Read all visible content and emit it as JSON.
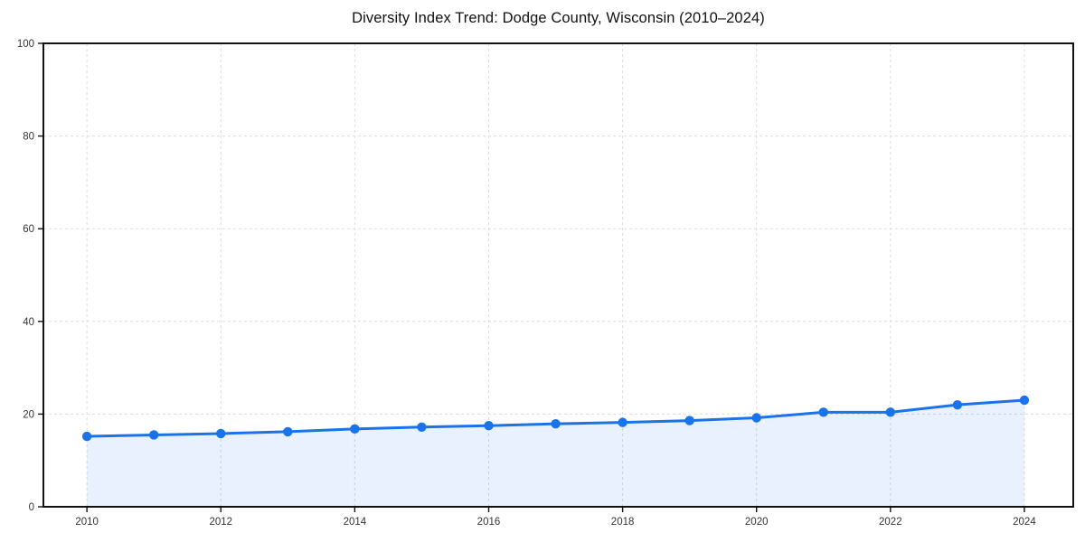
{
  "page": {
    "title": "Diversity Index Trend: Dodge County, Wisconsin (2010–2024)"
  },
  "chart_data": {
    "type": "line",
    "title": "Diversity Index Trend: Dodge County, Wisconsin (2010–2024)",
    "x": [
      2010,
      2011,
      2012,
      2013,
      2014,
      2015,
      2016,
      2017,
      2018,
      2019,
      2020,
      2021,
      2022,
      2023,
      2024
    ],
    "series": [
      {
        "name": "Diversity Index",
        "values": [
          15.2,
          15.5,
          15.8,
          16.2,
          16.8,
          17.2,
          17.5,
          17.9,
          18.2,
          18.6,
          19.2,
          20.4,
          20.4,
          22.0,
          23.0
        ]
      }
    ],
    "xlabel": "",
    "ylabel": "",
    "xlim": [
      2009.35,
      2024.73
    ],
    "ylim": [
      0,
      100
    ],
    "x_ticks": [
      2010,
      2012,
      2014,
      2016,
      2018,
      2020,
      2022,
      2024
    ],
    "y_ticks": [
      0,
      20,
      40,
      60,
      80,
      100
    ],
    "grid": true,
    "grid_style": "dashed",
    "legend": false,
    "line_color": "#1a73e8",
    "marker_color": "#1a73e8",
    "fill_color": "#1a73e8",
    "fill_opacity": 0.1,
    "grid_color": "#dcdcdc",
    "spine_color": "#111111",
    "tick_label_color": "#333333",
    "marker_radius": 5.2,
    "line_width": 3
  }
}
